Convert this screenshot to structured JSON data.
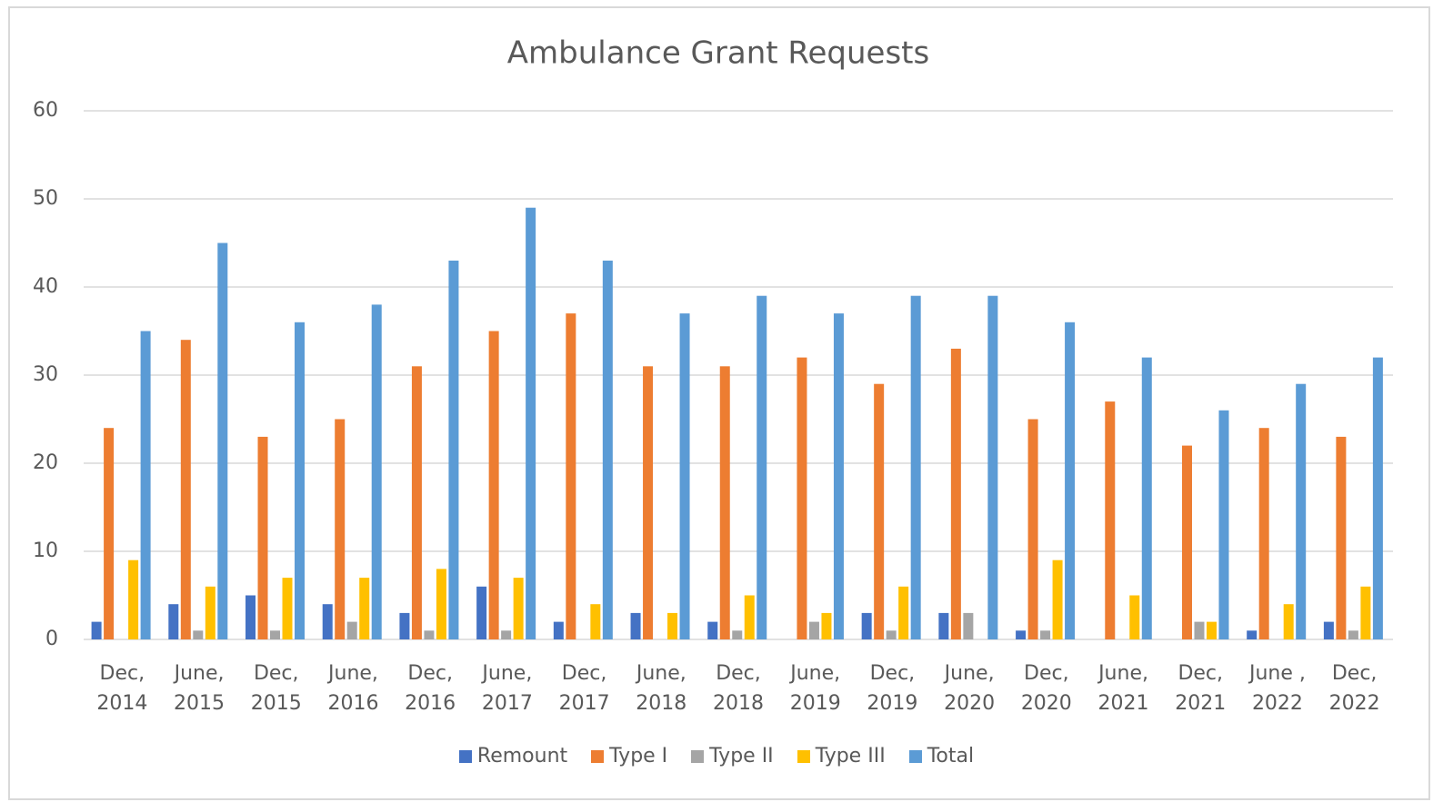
{
  "chart_data": {
    "type": "bar",
    "title": "Ambulance Grant Requests",
    "categories": [
      "Dec, 2014",
      "June, 2015",
      "Dec, 2015",
      "June, 2016",
      "Dec, 2016",
      "June, 2017",
      "Dec, 2017",
      "June, 2018",
      "Dec, 2018",
      "June, 2019",
      "Dec, 2019",
      "June, 2020",
      "Dec, 2020",
      "June, 2021",
      "Dec, 2021",
      "June , 2022",
      "Dec, 2022"
    ],
    "series": [
      {
        "name": "Remount",
        "color": "#4472c4",
        "values": [
          2,
          4,
          5,
          4,
          3,
          6,
          2,
          3,
          2,
          0,
          3,
          3,
          1,
          0,
          0,
          1,
          2
        ]
      },
      {
        "name": "Type I",
        "color": "#ed7d31",
        "values": [
          24,
          34,
          23,
          25,
          31,
          35,
          37,
          31,
          31,
          32,
          29,
          33,
          25,
          27,
          22,
          24,
          23
        ]
      },
      {
        "name": "Type II",
        "color": "#a5a5a5",
        "values": [
          0,
          1,
          1,
          2,
          1,
          1,
          0,
          0,
          1,
          2,
          1,
          3,
          1,
          0,
          2,
          0,
          1
        ]
      },
      {
        "name": "Type III",
        "color": "#ffc000",
        "values": [
          9,
          6,
          7,
          7,
          8,
          7,
          4,
          3,
          5,
          3,
          6,
          0,
          9,
          5,
          2,
          4,
          6
        ]
      },
      {
        "name": "Total",
        "color": "#5b9bd5",
        "values": [
          35,
          45,
          36,
          38,
          43,
          49,
          43,
          37,
          39,
          37,
          39,
          39,
          36,
          32,
          26,
          29,
          32
        ]
      }
    ],
    "ylim": [
      0,
      60
    ],
    "yticks": [
      0,
      10,
      20,
      30,
      40,
      50,
      60
    ],
    "grid": true,
    "legend": "bottom"
  }
}
